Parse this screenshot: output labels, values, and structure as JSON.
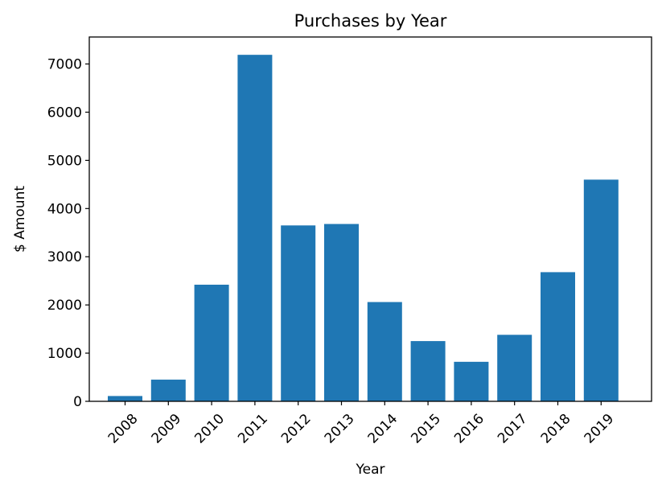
{
  "chart_data": {
    "type": "bar",
    "title": "Purchases by Year",
    "xlabel": "Year",
    "ylabel": "$ Amount",
    "categories": [
      "2008",
      "2009",
      "2010",
      "2011",
      "2012",
      "2013",
      "2014",
      "2015",
      "2016",
      "2017",
      "2018",
      "2019"
    ],
    "values": [
      110,
      450,
      2420,
      7190,
      3650,
      3680,
      2060,
      1250,
      820,
      1380,
      2680,
      4600
    ],
    "ylim": [
      0,
      7560
    ],
    "yticks": [
      0,
      1000,
      2000,
      3000,
      4000,
      5000,
      6000,
      7000
    ],
    "grid": false,
    "legend": "none",
    "bar_color": "#1f77b4"
  }
}
